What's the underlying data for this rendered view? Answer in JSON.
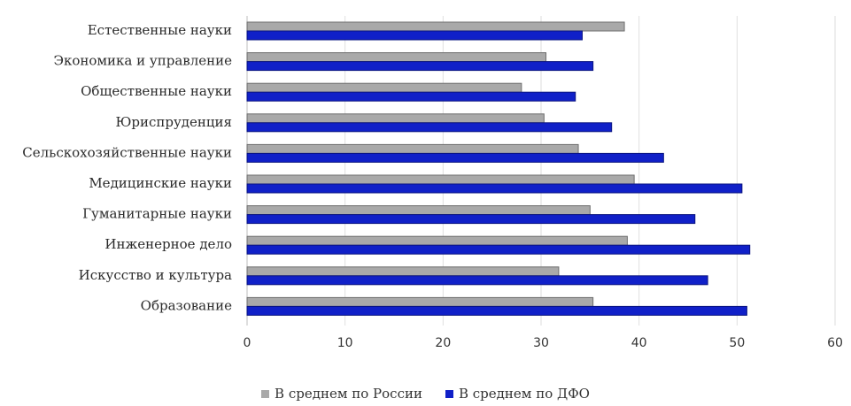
{
  "chart_data": {
    "type": "bar",
    "orientation": "horizontal",
    "title": "",
    "xlabel": "",
    "ylabel": "",
    "xlim": [
      0,
      60
    ],
    "xticks": [
      0,
      10,
      20,
      30,
      40,
      50,
      60
    ],
    "grid": true,
    "legend_position": "bottom",
    "categories": [
      "Естественные науки",
      "Экономика и управление",
      "Общественные науки",
      "Юриспруденция",
      "Сельскохозяйственные науки",
      "Медицинские науки",
      "Гуманитарные науки",
      "Инженерное дело",
      "Искусство и культура",
      "Образование"
    ],
    "series": [
      {
        "name": "В среднем по России",
        "color": "#a9a9a9",
        "values": [
          38.5,
          30.5,
          28,
          30.3,
          33.8,
          39.5,
          35,
          38.8,
          31.8,
          35.3
        ]
      },
      {
        "name": "В среднем по ДФО",
        "color": "#1020c8",
        "values": [
          34.2,
          35.3,
          33.5,
          37.2,
          42.5,
          50.5,
          45.7,
          51.3,
          47,
          51
        ]
      }
    ]
  }
}
